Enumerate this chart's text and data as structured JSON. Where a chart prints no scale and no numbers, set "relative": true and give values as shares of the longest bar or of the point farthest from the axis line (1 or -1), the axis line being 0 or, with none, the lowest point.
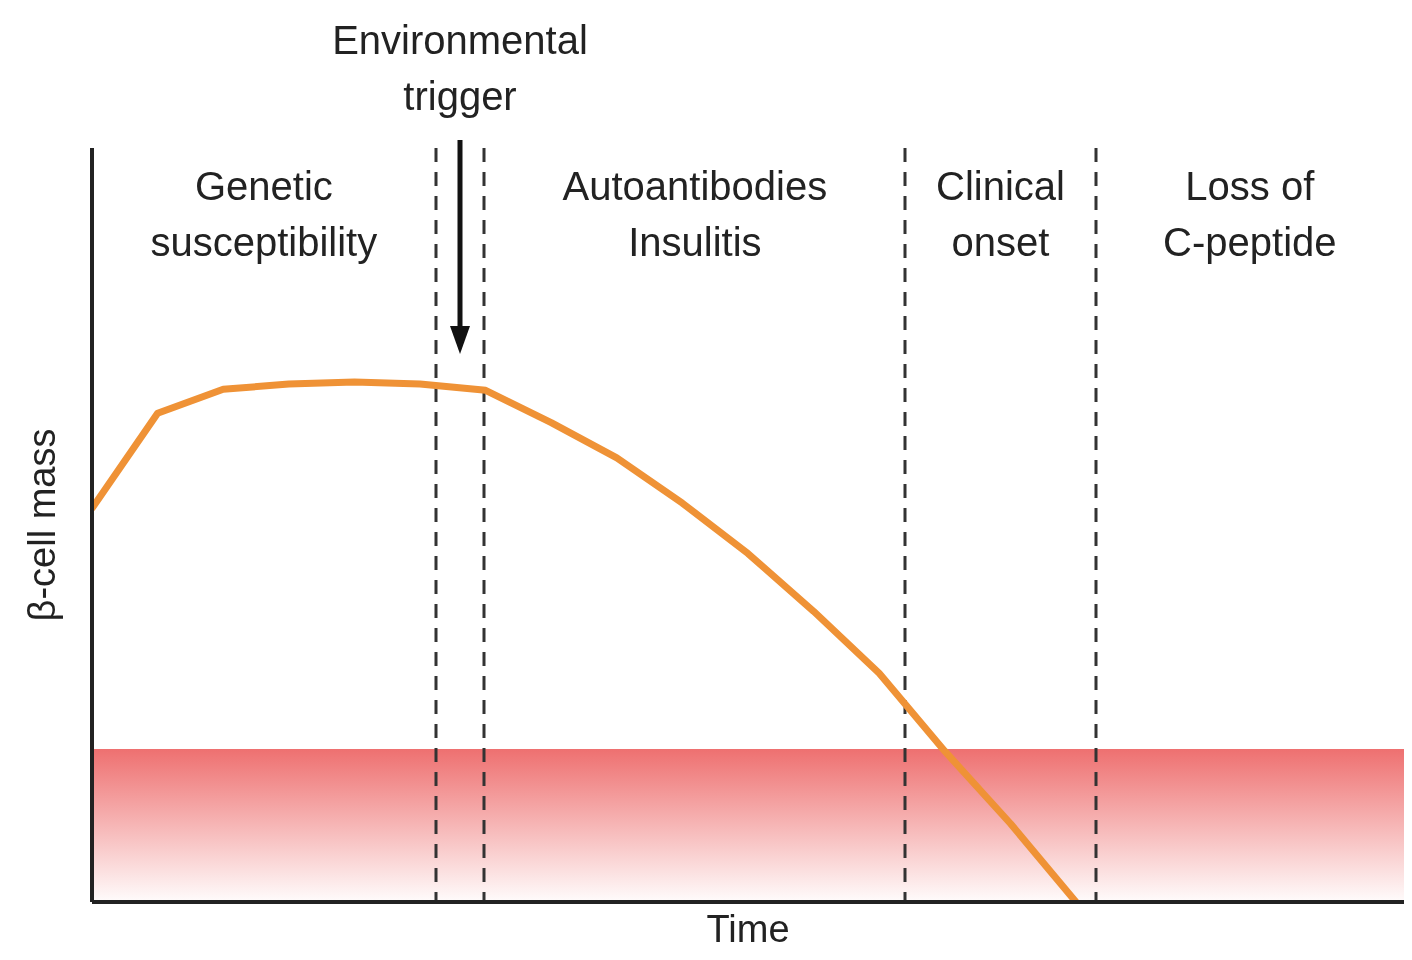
{
  "chart_data": {
    "type": "line",
    "relative": true,
    "xlabel": "Time",
    "ylabel": "β-cell mass",
    "tick_labels": false,
    "grid": false,
    "legend": false,
    "marker": "none",
    "line_style": "solid",
    "categories": [
      null,
      null,
      null,
      null,
      null,
      null,
      null,
      null,
      null,
      null,
      null,
      null,
      null,
      null,
      null,
      null,
      null,
      null,
      null,
      null,
      null
    ],
    "series": [
      {
        "color": "#ef9236",
        "values": [
          0.757,
          0.94,
          0.986,
          0.996,
          1,
          0.996,
          0.984,
          0.922,
          0.854,
          0.767,
          0.67,
          0.559,
          0.44,
          0.29,
          0.151,
          0,
          null,
          null,
          null,
          null,
          null
        ]
      }
    ],
    "annotations": [
      "Environmental\ntrigger",
      "Genetic\nsusceptibility",
      "Autoantibodies\nInsulitis",
      "Clinical\nonset",
      "Loss of\nC-peptide"
    ]
  }
}
